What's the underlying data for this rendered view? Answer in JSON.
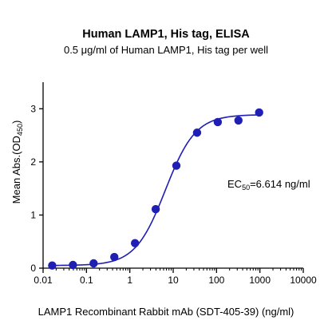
{
  "chart_data": {
    "type": "scatter",
    "title": "Human LAMP1, His tag, ELISA",
    "subtitle": "0.5 μg/ml of Human LAMP1, His tag per well",
    "xlabel": "LAMP1 Recombinant Rabbit mAb (SDT-405-39) (ng/ml)",
    "ylabel_main": "Mean Abs.(OD",
    "ylabel_sub": "450",
    "ylabel_close": ")",
    "x_scale": "log",
    "xlim": [
      0.01,
      10000
    ],
    "ylim": [
      0,
      3.5
    ],
    "x_ticks": [
      0.01,
      0.1,
      1,
      10,
      100,
      1000,
      10000
    ],
    "x_tick_labels": [
      "0.01",
      "0.1",
      "1",
      "10",
      "100",
      "1000",
      "10000"
    ],
    "y_ticks": [
      0,
      1,
      2,
      3
    ],
    "y_tick_labels": [
      "0",
      "1",
      "2",
      "3"
    ],
    "grid": false,
    "color": "#1f1fb4",
    "annotation": {
      "prefix": "EC",
      "sub": "50",
      "suffix": "=6.614 ng/ml"
    },
    "series": [
      {
        "x": [
          0.0162,
          0.0488,
          0.1463,
          0.439,
          1.317,
          3.951,
          11.85,
          35.56,
          106.7,
          320,
          960
        ],
        "y": [
          0.05,
          0.06,
          0.09,
          0.21,
          0.47,
          1.11,
          1.93,
          2.55,
          2.75,
          2.78,
          2.93
        ]
      }
    ],
    "fit": {
      "bottom": 0.05,
      "top": 2.89,
      "ec50": 6.614,
      "hill": 1.25
    }
  }
}
